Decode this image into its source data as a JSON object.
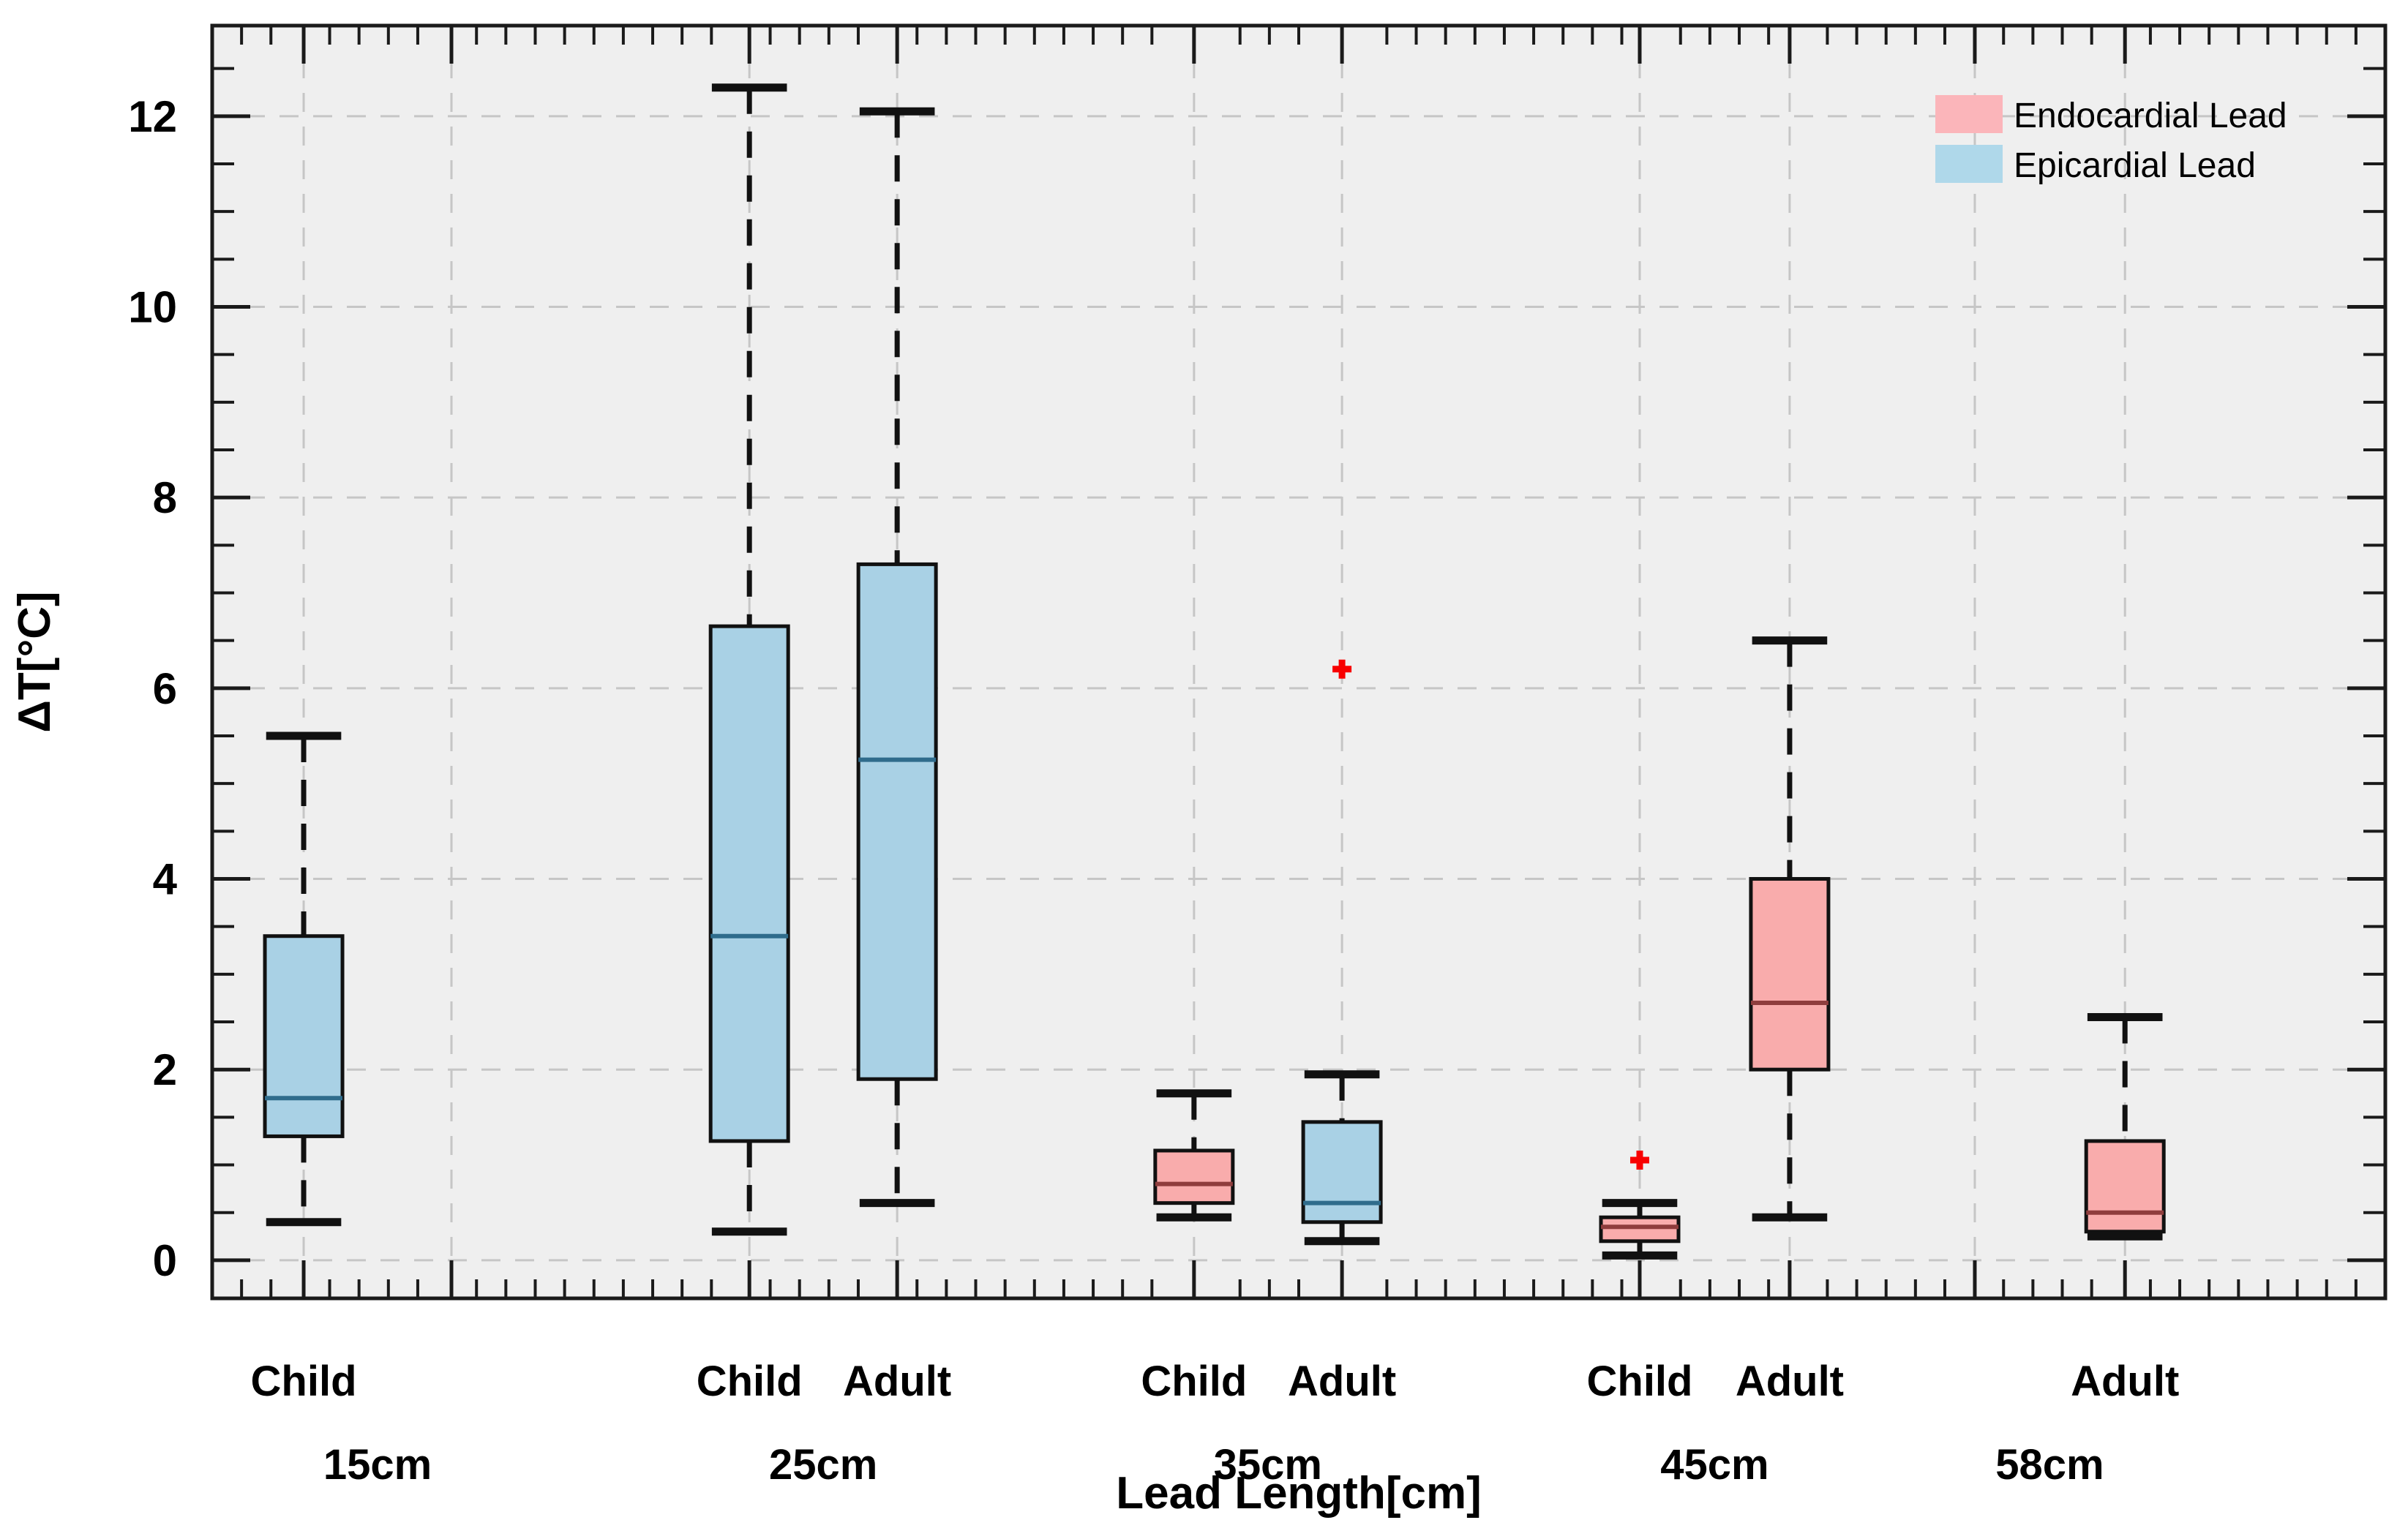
{
  "chart_data": {
    "type": "box",
    "title": "",
    "xlabel": "Lead Length[cm]",
    "ylabel": "ΔT[°C]",
    "ylim": [
      -0.4,
      12.95
    ],
    "y_major_ticks": [
      0,
      2,
      4,
      6,
      8,
      10,
      12
    ],
    "y_minor_step": 0.5,
    "grid": "dashed horizontal and vertical gridlines",
    "groups": [
      "15cm",
      "25cm",
      "35cm",
      "45cm",
      "58cm"
    ],
    "legend": {
      "position": "top-right",
      "entries": [
        {
          "label": "Endocardial Lead",
          "color": "#FBB5BA"
        },
        {
          "label": "Epicardial Lead",
          "color": "#AFD8EA"
        }
      ]
    },
    "boxes": [
      {
        "group": "15cm",
        "category": "Child",
        "series": "Epicardial Lead",
        "whisker_low": 0.4,
        "q1": 1.3,
        "median": 1.7,
        "q3": 3.4,
        "whisker_high": 5.5,
        "outliers": []
      },
      {
        "group": "25cm",
        "category": "Child",
        "series": "Epicardial Lead",
        "whisker_low": 0.3,
        "q1": 1.25,
        "median": 3.4,
        "q3": 6.65,
        "whisker_high": 12.3,
        "outliers": []
      },
      {
        "group": "25cm",
        "category": "Adult",
        "series": "Epicardial Lead",
        "whisker_low": 0.6,
        "q1": 1.9,
        "median": 5.25,
        "q3": 7.3,
        "whisker_high": 12.05,
        "outliers": []
      },
      {
        "group": "35cm",
        "category": "Child",
        "series": "Endocardial Lead",
        "whisker_low": 0.45,
        "q1": 0.6,
        "median": 0.8,
        "q3": 1.15,
        "whisker_high": 1.75,
        "outliers": []
      },
      {
        "group": "35cm",
        "category": "Adult",
        "series": "Epicardial Lead",
        "whisker_low": 0.2,
        "q1": 0.4,
        "median": 0.6,
        "q3": 1.45,
        "whisker_high": 1.95,
        "outliers": [
          6.2
        ]
      },
      {
        "group": "45cm",
        "category": "Child",
        "series": "Endocardial Lead",
        "whisker_low": 0.05,
        "q1": 0.2,
        "median": 0.35,
        "q3": 0.45,
        "whisker_high": 0.6,
        "outliers": [
          1.05
        ]
      },
      {
        "group": "45cm",
        "category": "Adult",
        "series": "Endocardial Lead",
        "whisker_low": 0.45,
        "q1": 2.0,
        "median": 2.7,
        "q3": 4.0,
        "whisker_high": 6.5,
        "outliers": []
      },
      {
        "group": "58cm",
        "category": "Adult",
        "series": "Endocardial Lead",
        "whisker_low": 0.25,
        "q1": 0.3,
        "median": 0.5,
        "q3": 1.25,
        "whisker_high": 2.55,
        "outliers": []
      }
    ],
    "colors": {
      "endocardial_fill": "#F9ACAC",
      "endocardial_median": "#8F3D3D",
      "epicardial_fill": "#A9D1E5",
      "epicardial_median": "#2F6C8C",
      "box_edge": "#111111",
      "whisker": "#111111",
      "outlier": "#F80000",
      "plot_background": "#EFEFEF",
      "gridline": "#C6C6C6",
      "axis": "#1A1A1A"
    }
  }
}
